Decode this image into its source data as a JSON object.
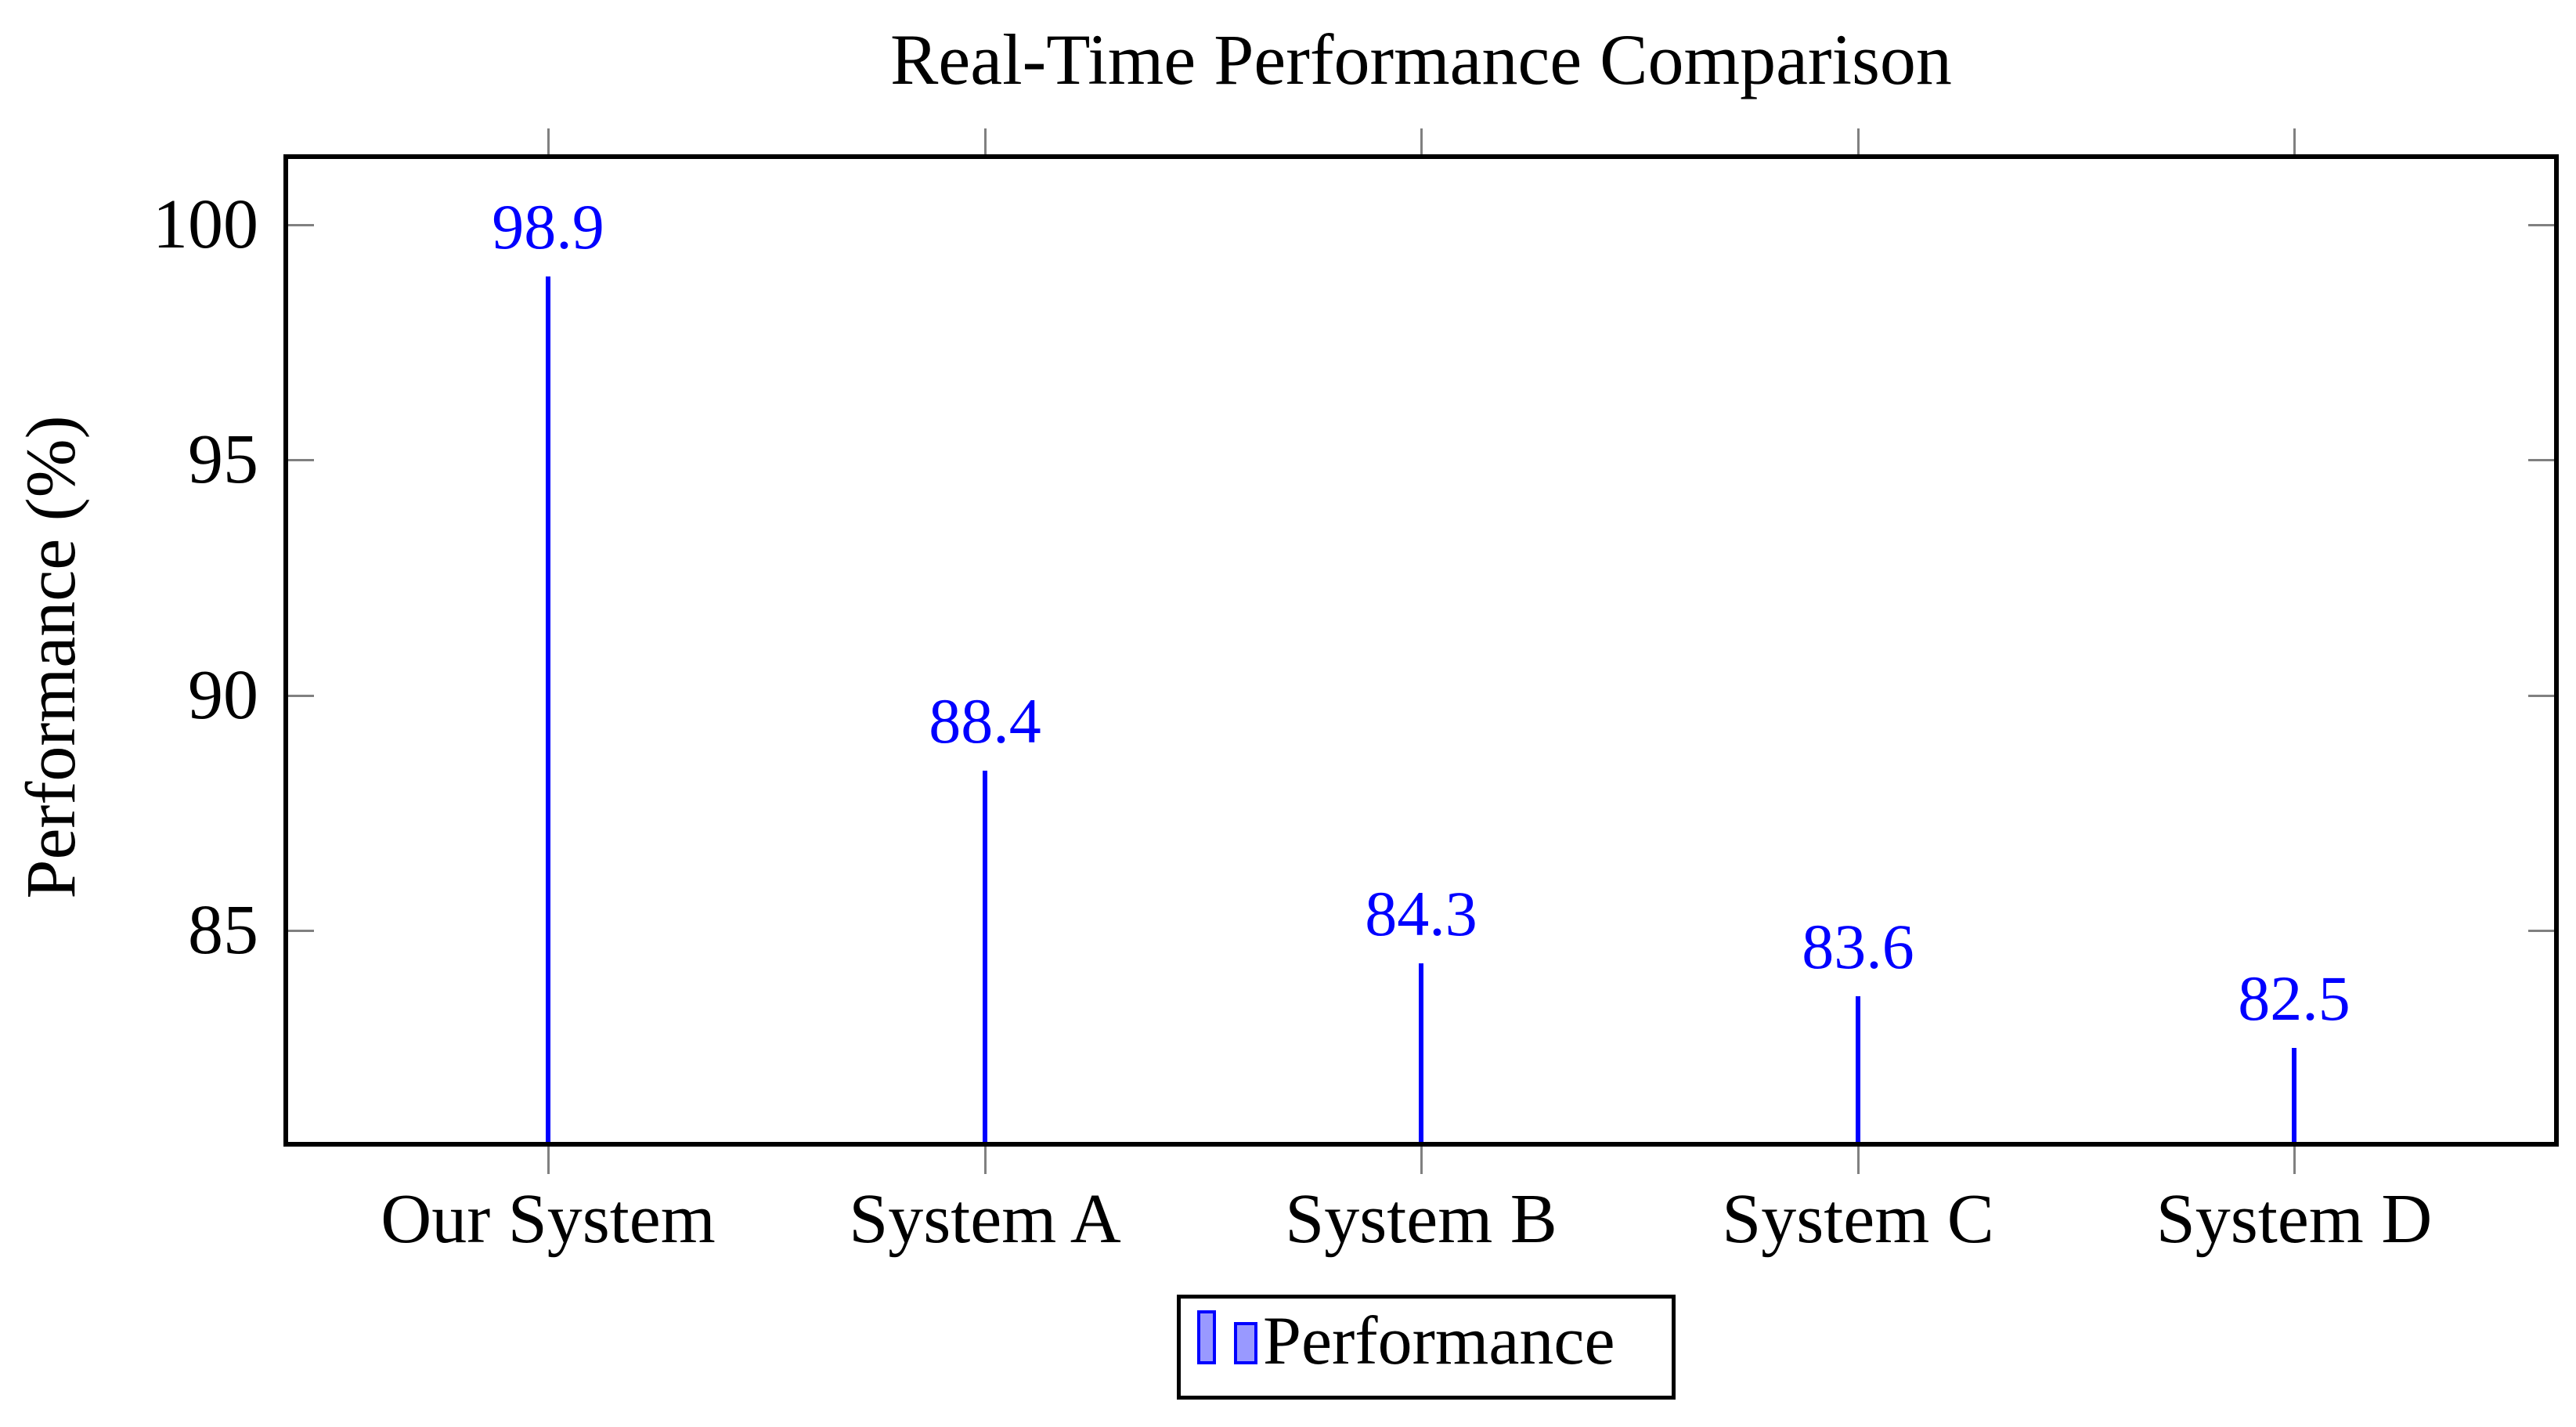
{
  "chart_data": {
    "type": "bar",
    "title": "Real-Time Performance Comparison",
    "ylabel": "Performance (%)",
    "categories": [
      "Our System",
      "System A",
      "System B",
      "System C",
      "System D"
    ],
    "series": [
      {
        "name": "Performance",
        "values": [
          98.9,
          88.4,
          84.3,
          83.6,
          82.5
        ]
      }
    ],
    "data_labels": [
      "98.9",
      "88.4",
      "84.3",
      "83.6",
      "82.5"
    ],
    "yticks": [
      "85",
      "90",
      "95",
      "100"
    ],
    "ytick_values": [
      85,
      90,
      95,
      100
    ],
    "ylim": [
      80.5,
      101.4
    ],
    "grid": false,
    "legend_position": "below-center",
    "colors": {
      "bar": "#0000ff",
      "data_label": "#0000ff",
      "legend_fill": "#9999ff",
      "axis": "#000000",
      "tick": "#808080",
      "text": "#000000"
    }
  }
}
